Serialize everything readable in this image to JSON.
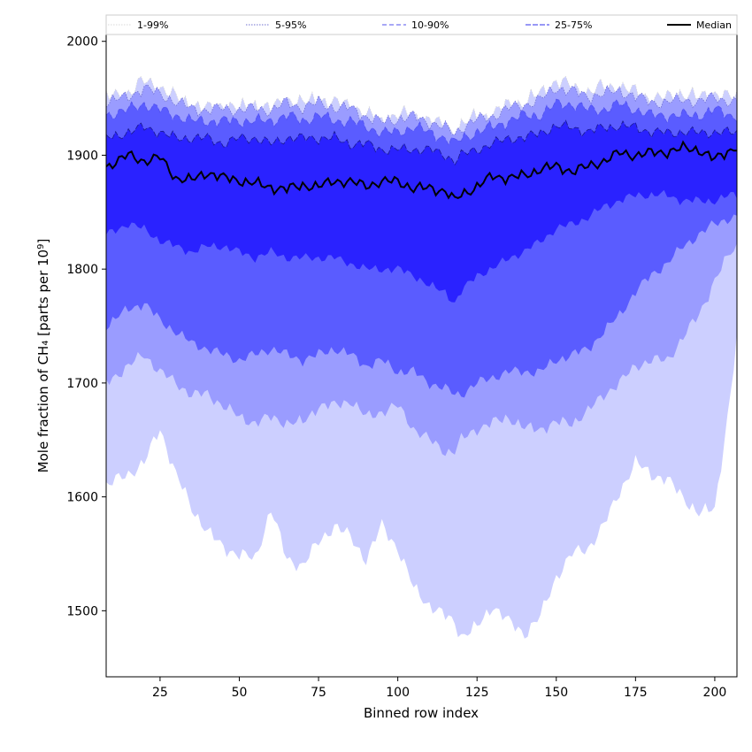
{
  "chart_data": {
    "type": "area",
    "title": "",
    "xlabel": "Binned row index",
    "ylabel_prefix": "Mole fraction of CH₄ [parts per 10",
    "ylabel_exp": "9",
    "ylabel_suffix": "]",
    "xlim": [
      8,
      207
    ],
    "ylim": [
      1442,
      2006
    ],
    "xticks": [
      25,
      50,
      75,
      100,
      125,
      150,
      175,
      200
    ],
    "yticks": [
      1500,
      1600,
      1700,
      1800,
      1900,
      2000
    ],
    "grid": false,
    "legend_position": "top",
    "x": [
      8,
      15,
      20,
      25,
      30,
      35,
      40,
      45,
      50,
      55,
      60,
      65,
      70,
      75,
      80,
      85,
      90,
      95,
      100,
      105,
      110,
      115,
      118,
      120,
      125,
      130,
      135,
      140,
      145,
      150,
      155,
      160,
      165,
      170,
      175,
      180,
      185,
      190,
      195,
      200,
      205,
      207
    ],
    "bands": [
      {
        "name": "1-99%",
        "color": "#cccfff",
        "line": "#d8d8d8",
        "dash": "1.5,1.5",
        "lower": [
          1610,
          1620,
          1630,
          1660,
          1620,
          1590,
          1570,
          1555,
          1550,
          1545,
          1590,
          1545,
          1540,
          1560,
          1575,
          1565,
          1545,
          1575,
          1555,
          1520,
          1505,
          1495,
          1490,
          1478,
          1485,
          1505,
          1490,
          1480,
          1495,
          1530,
          1550,
          1555,
          1575,
          1605,
          1630,
          1620,
          1615,
          1600,
          1585,
          1590,
          1690,
          1740
        ],
        "upper": [
          1950,
          1955,
          1965,
          1960,
          1950,
          1945,
          1940,
          1945,
          1940,
          1945,
          1940,
          1950,
          1945,
          1950,
          1945,
          1945,
          1935,
          1930,
          1935,
          1935,
          1930,
          1925,
          1920,
          1925,
          1935,
          1935,
          1945,
          1945,
          1955,
          1965,
          1960,
          1955,
          1960,
          1960,
          1955,
          1950,
          1950,
          1955,
          1950,
          1955,
          1950,
          1950
        ]
      },
      {
        "name": "5-95%",
        "color": "#9a9cff",
        "line": "#7070d0",
        "dash": "1.5,1.5",
        "lower": [
          1700,
          1715,
          1725,
          1710,
          1700,
          1690,
          1690,
          1680,
          1670,
          1665,
          1670,
          1665,
          1665,
          1680,
          1680,
          1685,
          1670,
          1675,
          1680,
          1660,
          1650,
          1640,
          1640,
          1650,
          1660,
          1665,
          1670,
          1660,
          1660,
          1665,
          1665,
          1675,
          1690,
          1700,
          1715,
          1720,
          1720,
          1740,
          1760,
          1790,
          1815,
          1820
        ]
      },
      {
        "name": "10-90%",
        "color": "#5a5cff",
        "line": "#5050ee",
        "dash": "5,3",
        "lower": [
          1750,
          1765,
          1770,
          1755,
          1745,
          1735,
          1730,
          1725,
          1720,
          1725,
          1730,
          1725,
          1720,
          1725,
          1730,
          1725,
          1715,
          1720,
          1710,
          1710,
          1700,
          1695,
          1690,
          1690,
          1700,
          1705,
          1710,
          1710,
          1710,
          1720,
          1725,
          1730,
          1745,
          1760,
          1780,
          1795,
          1805,
          1820,
          1830,
          1840,
          1845,
          1845
        ],
        "upper": [
          1935,
          1940,
          1945,
          1940,
          1935,
          1930,
          1930,
          1930,
          1930,
          1930,
          1930,
          1935,
          1930,
          1935,
          1930,
          1930,
          1925,
          1920,
          1920,
          1925,
          1920,
          1915,
          1910,
          1915,
          1920,
          1925,
          1930,
          1935,
          1935,
          1945,
          1945,
          1940,
          1940,
          1945,
          1940,
          1935,
          1935,
          1935,
          1935,
          1940,
          1935,
          1935
        ]
      },
      {
        "name": "25-75%",
        "color": "#2a22ff",
        "line": "#1a1a90",
        "dash": "6,2",
        "lower": [
          1830,
          1840,
          1835,
          1825,
          1820,
          1815,
          1820,
          1820,
          1815,
          1810,
          1815,
          1810,
          1810,
          1810,
          1810,
          1805,
          1800,
          1800,
          1800,
          1795,
          1785,
          1780,
          1770,
          1780,
          1795,
          1800,
          1810,
          1815,
          1825,
          1835,
          1840,
          1845,
          1855,
          1860,
          1865,
          1865,
          1865,
          1860,
          1860,
          1860,
          1865,
          1865
        ],
        "upper": [
          1915,
          1920,
          1925,
          1920,
          1915,
          1915,
          1915,
          1910,
          1915,
          1915,
          1910,
          1915,
          1915,
          1915,
          1915,
          1910,
          1910,
          1905,
          1905,
          1905,
          1905,
          1900,
          1895,
          1900,
          1905,
          1910,
          1915,
          1915,
          1920,
          1925,
          1925,
          1920,
          1925,
          1925,
          1925,
          1920,
          1920,
          1920,
          1920,
          1920,
          1920,
          1920
        ]
      }
    ],
    "median": {
      "name": "Median",
      "color": "#000000",
      "values": [
        1890,
        1900,
        1895,
        1898,
        1880,
        1878,
        1885,
        1880,
        1878,
        1875,
        1872,
        1870,
        1874,
        1872,
        1878,
        1876,
        1874,
        1876,
        1878,
        1870,
        1872,
        1868,
        1860,
        1866,
        1872,
        1882,
        1880,
        1882,
        1888,
        1890,
        1886,
        1890,
        1895,
        1902,
        1900,
        1902,
        1903,
        1906,
        1905,
        1896,
        1905,
        1908
      ]
    }
  },
  "legend": {
    "items": [
      {
        "label": "1-99%",
        "color": "#d8d8d8",
        "dash": "1.5,1.5",
        "width": 1
      },
      {
        "label": "5-95%",
        "color": "#7070d0",
        "dash": "1.5,1.5",
        "width": 1
      },
      {
        "label": "10-90%",
        "color": "#5050ee",
        "dash": "5,3",
        "width": 1
      },
      {
        "label": "25-75%",
        "color": "#3030ee",
        "dash": "6,2",
        "width": 1
      },
      {
        "label": "Median",
        "color": "#000000",
        "dash": "",
        "width": 2
      }
    ]
  }
}
